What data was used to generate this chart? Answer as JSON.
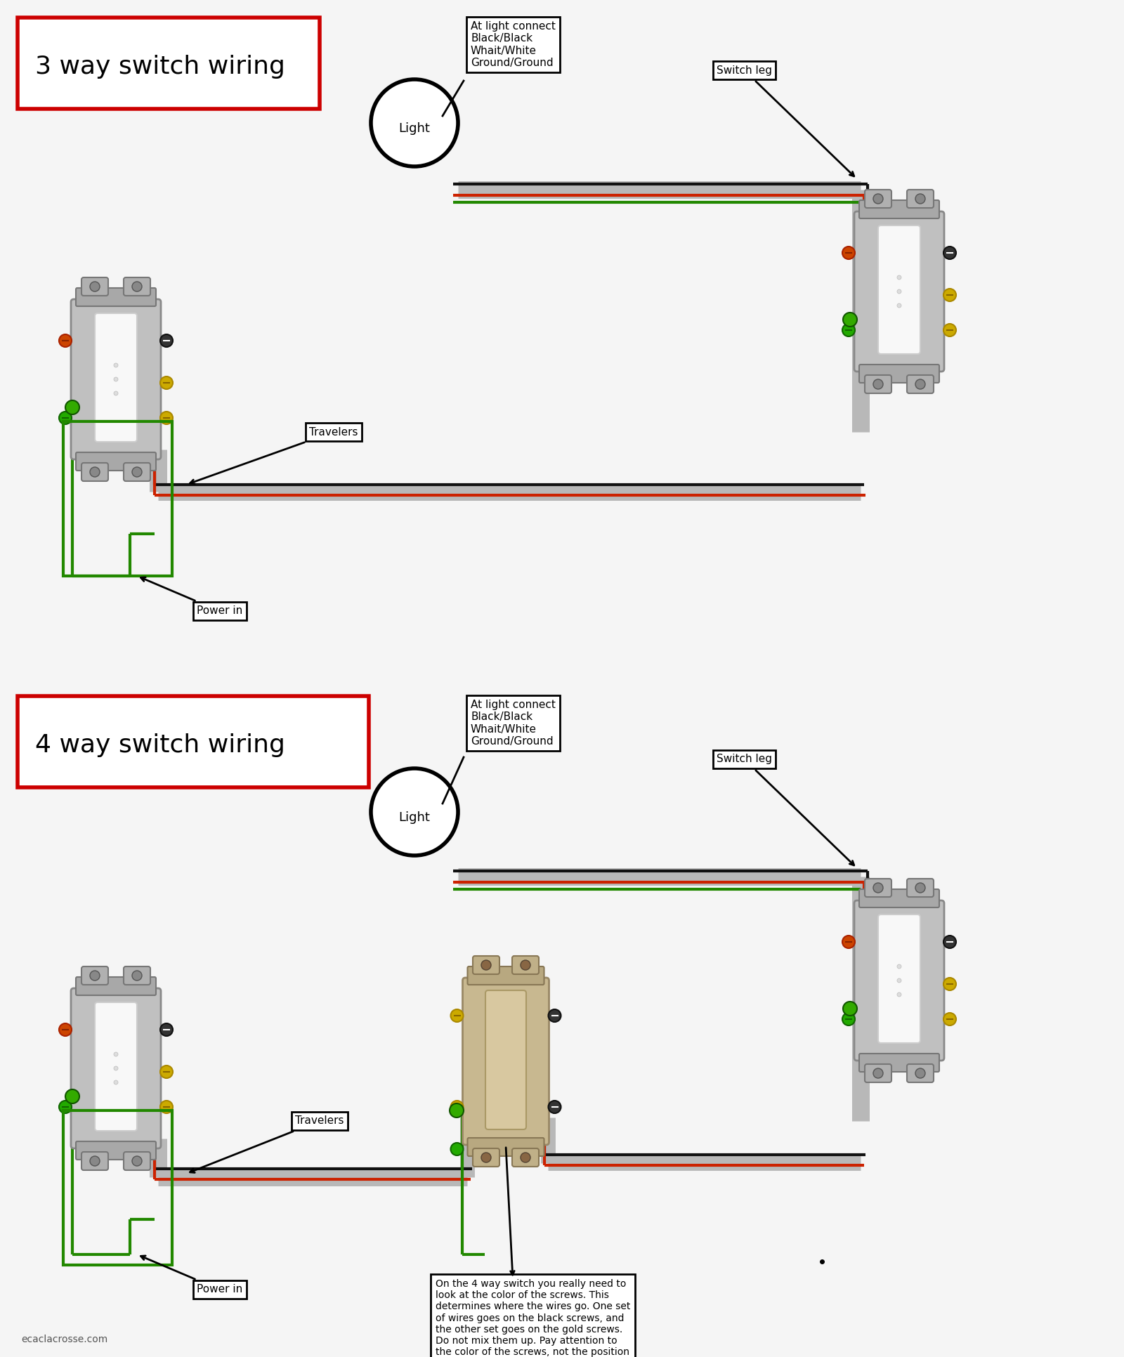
{
  "title_3way": "3 way switch wiring",
  "title_4way": "4 way switch wiring",
  "bg_color": "#f5f5f5",
  "title_fontsize": 26,
  "title_border_color": "#cc0000",
  "light_label": "Light",
  "annotation_light": "At light connect\nBlack/Black\nWhait/White\nGround/Ground",
  "switch_leg_label": "Switch leg",
  "travelers_label": "Travelers",
  "power_in_label": "Power in",
  "annotation_4way_note": "On the 4 way switch you really need to\nlook at the color of the screws. This\ndetermines where the wires go. One set\nof wires goes on the black screws, and\nthe other set goes on the gold screws.\nDo not mix them up. Pay attention to\nthe color of the screws, not the position\nof where they are.",
  "footer_text": "ecaclacrosse.com",
  "wire_gray": "#b8b8b8",
  "wire_black": "#111111",
  "wire_red": "#cc2200",
  "wire_green": "#228800",
  "switch_body": "#b8b8b8",
  "switch_face_white": "#f0f0f0",
  "switch_face_tan": "#d4c4a0",
  "gold_screw": "#ccaa00",
  "black_screw": "#222222",
  "red_screw": "#cc3300",
  "green_dot": "#33aa00"
}
